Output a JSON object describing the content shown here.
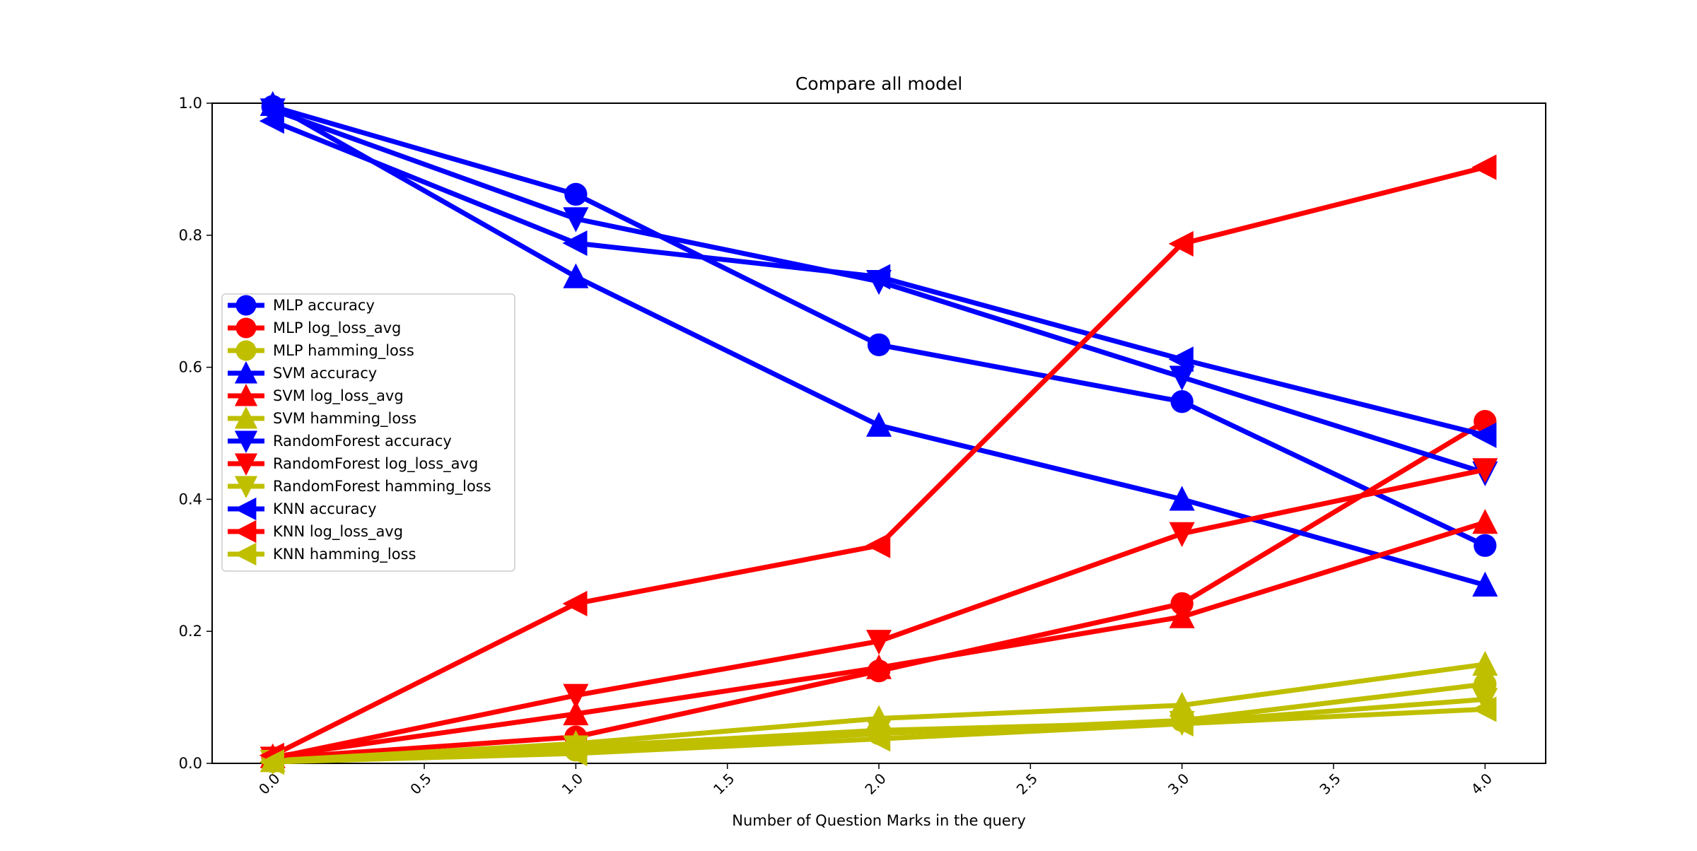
{
  "chart_data": {
    "type": "line",
    "title": "Compare all model",
    "xlabel": "Number of Question Marks in the query",
    "ylabel": "",
    "x": [
      0,
      1,
      2,
      3,
      4
    ],
    "xlim": [
      -0.2,
      4.2
    ],
    "ylim": [
      0,
      1
    ],
    "xticks": [
      "0.0",
      "0.5",
      "1.0",
      "1.5",
      "2.0",
      "2.5",
      "3.0",
      "3.5",
      "4.0"
    ],
    "yticks": [
      "0.0",
      "0.2",
      "0.4",
      "0.6",
      "0.8",
      "1.0"
    ],
    "grid": false,
    "legend_position": "center-left",
    "series": [
      {
        "name": "MLP accuracy",
        "color": "#0000ff",
        "marker": "circle",
        "values": [
          0.995,
          0.862,
          0.634,
          0.548,
          0.33
        ]
      },
      {
        "name": "MLP log_loss_avg",
        "color": "#ff0000",
        "marker": "circle",
        "values": [
          0.008,
          0.04,
          0.14,
          0.242,
          0.518
        ]
      },
      {
        "name": "MLP hamming_loss",
        "color": "#bfbf00",
        "marker": "circle",
        "values": [
          0.003,
          0.02,
          0.045,
          0.065,
          0.12
        ]
      },
      {
        "name": "SVM accuracy",
        "color": "#0000ff",
        "marker": "triangle-up",
        "values": [
          0.998,
          0.737,
          0.512,
          0.4,
          0.27
        ]
      },
      {
        "name": "SVM log_loss_avg",
        "color": "#ff0000",
        "marker": "triangle-up",
        "values": [
          0.01,
          0.075,
          0.145,
          0.222,
          0.365
        ]
      },
      {
        "name": "SVM hamming_loss",
        "color": "#bfbf00",
        "marker": "triangle-up",
        "values": [
          0.004,
          0.03,
          0.068,
          0.088,
          0.15
        ]
      },
      {
        "name": "RandomForest accuracy",
        "color": "#0000ff",
        "marker": "triangle-down",
        "values": [
          0.99,
          0.825,
          0.73,
          0.585,
          0.44
        ]
      },
      {
        "name": "RandomForest log_loss_avg",
        "color": "#ff0000",
        "marker": "triangle-down",
        "values": [
          0.008,
          0.103,
          0.185,
          0.348,
          0.445
        ]
      },
      {
        "name": "RandomForest hamming_loss",
        "color": "#bfbf00",
        "marker": "triangle-down",
        "values": [
          0.003,
          0.025,
          0.05,
          0.062,
          0.097
        ]
      },
      {
        "name": "KNN accuracy",
        "color": "#0000ff",
        "marker": "triangle-left",
        "values": [
          0.973,
          0.788,
          0.737,
          0.612,
          0.497
        ]
      },
      {
        "name": "KNN log_loss_avg",
        "color": "#ff0000",
        "marker": "triangle-left",
        "values": [
          0.012,
          0.242,
          0.33,
          0.787,
          0.903
        ]
      },
      {
        "name": "KNN hamming_loss",
        "color": "#bfbf00",
        "marker": "triangle-left",
        "values": [
          0.002,
          0.015,
          0.037,
          0.06,
          0.082
        ]
      }
    ]
  }
}
